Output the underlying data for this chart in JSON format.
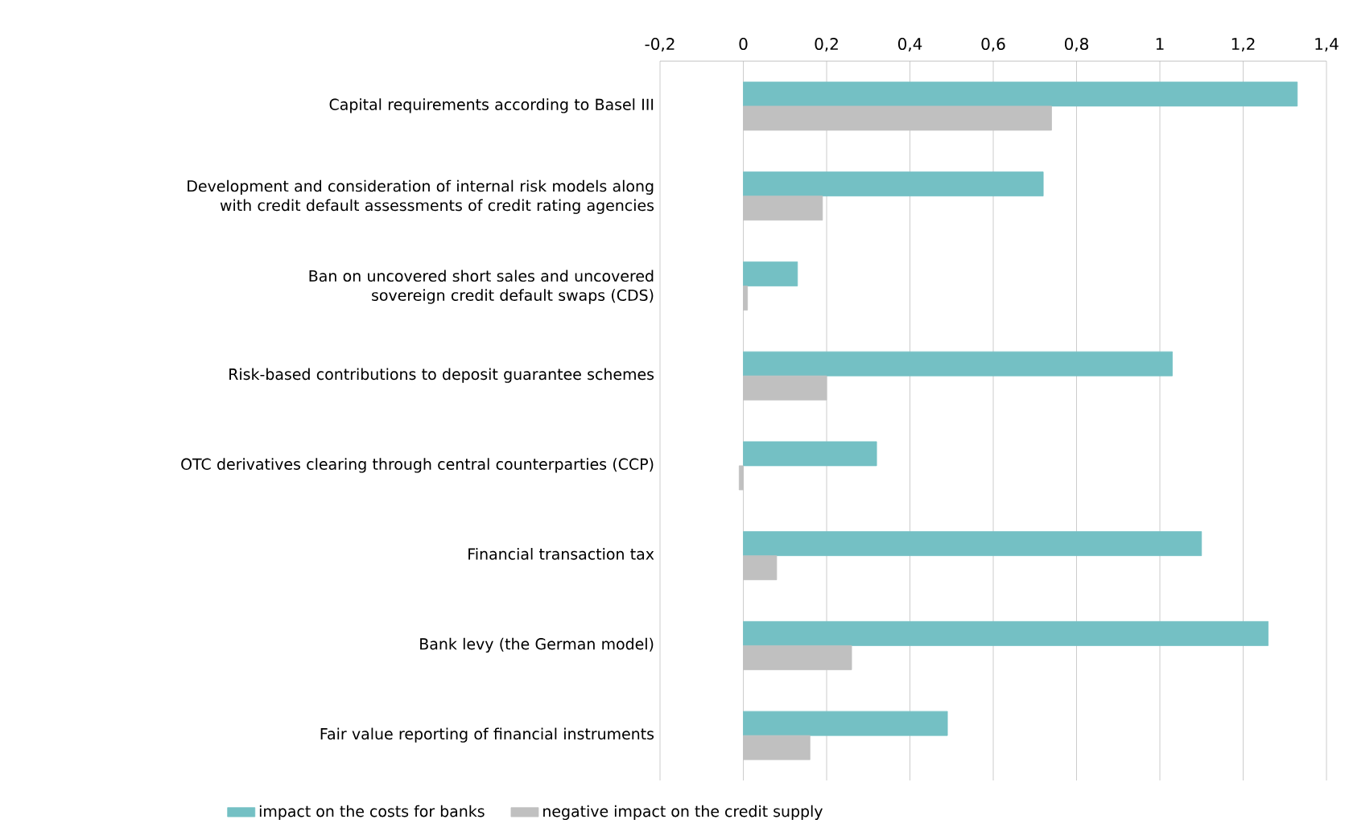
{
  "chart_data": {
    "type": "bar",
    "orientation": "horizontal",
    "categories": [
      "Capital requirements according to Basel III",
      "Development and consideration of internal risk models along with credit default assessments of credit rating agencies",
      "Ban on uncovered short sales and uncovered sovereign credit default swaps (CDS)",
      "Risk-based contributions to deposit guarantee schemes",
      "OTC derivatives clearing through central counterparties (CCP)",
      "Financial transaction tax",
      "Bank levy (the German model)",
      "Fair value reporting of financial instruments"
    ],
    "series": [
      {
        "name": "impact on the costs for banks",
        "color": "#74c0c4",
        "values": [
          1.33,
          0.72,
          0.13,
          1.03,
          0.32,
          1.1,
          1.26,
          0.49
        ]
      },
      {
        "name": "negative impact on the credit supply",
        "color": "#c0c0c0",
        "values": [
          0.74,
          0.19,
          0.01,
          0.2,
          -0.01,
          0.08,
          0.26,
          0.16
        ]
      }
    ],
    "xlim": [
      -0.2,
      1.4
    ],
    "xticks": [
      {
        "value": -0.2,
        "label": "-0,2"
      },
      {
        "value": 0,
        "label": "0"
      },
      {
        "value": 0.2,
        "label": "0,2"
      },
      {
        "value": 0.4,
        "label": "0,4"
      },
      {
        "value": 0.6,
        "label": "0,6"
      },
      {
        "value": 0.8,
        "label": "0,8"
      },
      {
        "value": 1,
        "label": "1"
      },
      {
        "value": 1.2,
        "label": "1,2"
      },
      {
        "value": 1.4,
        "label": "1,4"
      }
    ],
    "grid": "x",
    "legend": "bottom"
  }
}
